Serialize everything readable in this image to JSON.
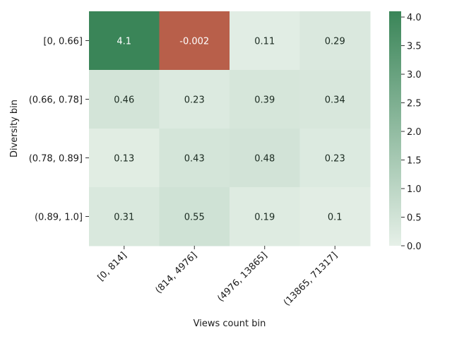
{
  "chart_data": {
    "type": "heatmap",
    "xlabel": "Views count bin",
    "ylabel": "Diversity bin",
    "x_categories": [
      "[0, 814]",
      "(814, 4976]",
      "(4976, 13865]",
      "(13865, 71317]"
    ],
    "y_categories": [
      "[0, 0.66]",
      "(0.66, 0.78]",
      "(0.78, 0.89]",
      "(0.89, 1.0]"
    ],
    "values": [
      [
        4.1,
        -0.002,
        0.11,
        0.29
      ],
      [
        0.46,
        0.23,
        0.39,
        0.34
      ],
      [
        0.13,
        0.43,
        0.48,
        0.23
      ],
      [
        0.31,
        0.55,
        0.19,
        0.1
      ]
    ],
    "colorbar": {
      "range": [
        0.0,
        4.1
      ],
      "ticks": [
        0.0,
        0.5,
        1.0,
        1.5,
        2.0,
        2.5,
        3.0,
        3.5,
        4.0
      ],
      "tick_labels": [
        "0.0",
        "0.5",
        "1.0",
        "1.5",
        "2.0",
        "2.5",
        "3.0",
        "3.5",
        "4.0"
      ]
    },
    "colors": {
      "high": "#3a8558",
      "low": "#e6f0e8",
      "negative": "#b85f4a"
    },
    "grid": false
  }
}
